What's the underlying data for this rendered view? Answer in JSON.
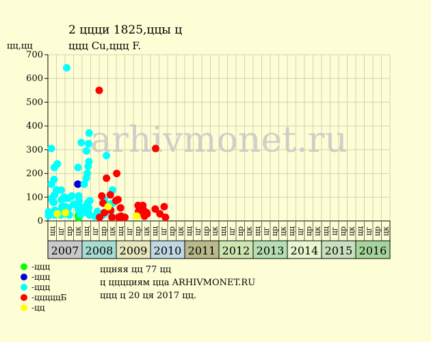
{
  "chart_data": {
    "type": "scatter",
    "title": "2 ццци 1825,ццы ц",
    "subtitle": "ццц Cu,ццц F.",
    "ylabel": "цц,цц",
    "watermark": "arhivmonet.ru",
    "ylim": [
      0,
      700
    ],
    "yticks": [
      0,
      100,
      200,
      300,
      400,
      500,
      600,
      700
    ],
    "grid": true,
    "years": [
      "2007",
      "2008",
      "2009",
      "2010",
      "2011",
      "2012",
      "2013",
      "2014",
      "2015",
      "2016"
    ],
    "year_colors": [
      "#c9c9c9",
      "#a7dcd3",
      "#e7e7bd",
      "#bfd8e4",
      "#b9b98c",
      "#cde5b0",
      "#b5dfb3",
      "#e8f5cf",
      "#c7e0bd",
      "#a6d59c"
    ],
    "quarter_labels": [
      "цц",
      "цг",
      "цр",
      "цк"
    ],
    "series": [
      {
        "name": "ццц",
        "color": "#00ff00",
        "points": [
          [
            3.55,
            22
          ],
          [
            3.6,
            14
          ],
          [
            3.65,
            30
          ]
        ]
      },
      {
        "name": "ццц",
        "color": "#0000dd",
        "points": [
          [
            3.5,
            155
          ]
        ]
      },
      {
        "name": "ццц",
        "color": "#00ffff",
        "points": [
          [
            0.07,
            38
          ],
          [
            0.09,
            30
          ],
          [
            0.09,
            22
          ],
          [
            0.4,
            305
          ],
          [
            0.42,
            155
          ],
          [
            0.45,
            95
          ],
          [
            0.5,
            90
          ],
          [
            0.6,
            80
          ],
          [
            0.62,
            35
          ],
          [
            0.65,
            28
          ],
          [
            0.7,
            78
          ],
          [
            0.72,
            175
          ],
          [
            0.75,
            225
          ],
          [
            0.77,
            110
          ],
          [
            0.8,
            45
          ],
          [
            0.82,
            25
          ],
          [
            0.85,
            40
          ],
          [
            0.9,
            30
          ],
          [
            1.0,
            130
          ],
          [
            1.1,
            240
          ],
          [
            1.3,
            40
          ],
          [
            1.4,
            30
          ],
          [
            1.5,
            25
          ],
          [
            1.55,
            130
          ],
          [
            1.6,
            90
          ],
          [
            1.65,
            60
          ],
          [
            1.7,
            35
          ],
          [
            1.75,
            55
          ],
          [
            1.8,
            45
          ],
          [
            1.85,
            30
          ],
          [
            1.9,
            100
          ],
          [
            2.05,
            60
          ],
          [
            2.1,
            30
          ],
          [
            2.15,
            95
          ],
          [
            2.2,
            645
          ],
          [
            2.3,
            35
          ],
          [
            2.35,
            95
          ],
          [
            2.4,
            55
          ],
          [
            2.5,
            25
          ],
          [
            2.8,
            105
          ],
          [
            3.0,
            70
          ],
          [
            3.5,
            75
          ],
          [
            3.52,
            225
          ],
          [
            3.55,
            50
          ],
          [
            3.6,
            105
          ],
          [
            3.65,
            85
          ],
          [
            3.7,
            60
          ],
          [
            3.75,
            40
          ],
          [
            3.8,
            25
          ],
          [
            3.9,
            330
          ],
          [
            4.2,
            50
          ],
          [
            4.25,
            155
          ],
          [
            4.3,
            40
          ],
          [
            4.35,
            55
          ],
          [
            4.4,
            60
          ],
          [
            4.5,
            295
          ],
          [
            4.5,
            180
          ],
          [
            4.55,
            35
          ],
          [
            4.6,
            200
          ],
          [
            4.6,
            65
          ],
          [
            4.65,
            75
          ],
          [
            4.7,
            230
          ],
          [
            4.72,
            40
          ],
          [
            4.75,
            325
          ],
          [
            4.78,
            55
          ],
          [
            4.8,
            250
          ],
          [
            4.82,
            370
          ],
          [
            4.85,
            25
          ],
          [
            4.9,
            85
          ],
          [
            5.5,
            20
          ],
          [
            5.8,
            40
          ],
          [
            6.45,
            25
          ],
          [
            6.55,
            90
          ],
          [
            6.6,
            80
          ],
          [
            6.85,
            275
          ],
          [
            7.2,
            40
          ],
          [
            7.25,
            70
          ],
          [
            7.35,
            30
          ],
          [
            7.55,
            130
          ],
          [
            7.6,
            75
          ]
        ]
      },
      {
        "name": "цццццБ",
        "color": "#ff0000",
        "points": [
          [
            6.0,
            550
          ],
          [
            6.05,
            15
          ],
          [
            6.3,
            105
          ],
          [
            6.45,
            75
          ],
          [
            6.6,
            35
          ],
          [
            6.85,
            180
          ],
          [
            7.3,
            110
          ],
          [
            7.35,
            45
          ],
          [
            7.5,
            15
          ],
          [
            7.95,
            85
          ],
          [
            8.05,
            200
          ],
          [
            8.2,
            90
          ],
          [
            8.25,
            15
          ],
          [
            8.5,
            55
          ],
          [
            8.55,
            20
          ],
          [
            8.7,
            15
          ],
          [
            9.0,
            15
          ],
          [
            10.55,
            65
          ],
          [
            10.6,
            40
          ],
          [
            10.8,
            45
          ],
          [
            10.85,
            35
          ],
          [
            11.05,
            40
          ],
          [
            11.1,
            65
          ],
          [
            11.2,
            45
          ],
          [
            11.3,
            20
          ],
          [
            11.55,
            35
          ],
          [
            11.6,
            30
          ],
          [
            12.55,
            50
          ],
          [
            12.6,
            305
          ],
          [
            13.1,
            30
          ],
          [
            13.6,
            60
          ],
          [
            13.75,
            15
          ]
        ]
      },
      {
        "name": "цц",
        "color": "#ffff00",
        "points": [
          [
            1.1,
            30
          ],
          [
            2.05,
            35
          ],
          [
            7.05,
            60
          ],
          [
            10.4,
            20
          ]
        ]
      }
    ]
  },
  "notes": [
    "ццняя цц 77 цц",
    "ц цццциям цца ARHIVMONET.RU",
    "ццц ц 20 ця 2017 цц."
  ]
}
